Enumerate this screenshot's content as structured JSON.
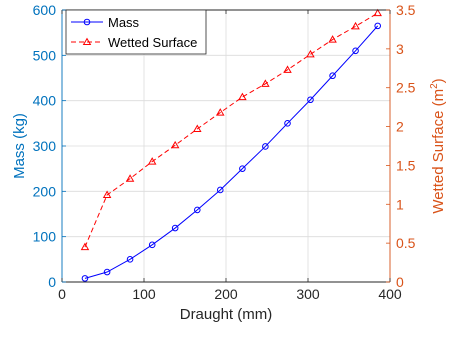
{
  "chart_data": {
    "type": "line",
    "xlabel": "Draught (mm)",
    "xlim": [
      0,
      400
    ],
    "x_ticks": [
      0,
      100,
      200,
      300,
      400
    ],
    "grid": true,
    "legend_position": "top-left",
    "y_left": {
      "label": "Mass (kg)",
      "lim": [
        0,
        600
      ],
      "ticks": [
        0,
        100,
        200,
        300,
        400,
        500,
        600
      ],
      "color": "#0072BD"
    },
    "y_right": {
      "label": "Wetted Surface (m",
      "label_sup": "2",
      "label_end": ")",
      "lim": [
        0,
        3.5
      ],
      "ticks": [
        0,
        0.5,
        1,
        1.5,
        2,
        2.5,
        3,
        3.5
      ],
      "tick_labels": [
        "0",
        "0.5",
        "1",
        "1.5",
        "2",
        "2.5",
        "3",
        "3.5"
      ],
      "color": "#D95319"
    },
    "series": [
      {
        "name": "Mass",
        "axis": "left",
        "color": "#0000FF",
        "marker": "circle",
        "line": "solid",
        "x": [
          28,
          55,
          83,
          110,
          138,
          165,
          193,
          220,
          248,
          275,
          303,
          330,
          358,
          385
        ],
        "y": [
          8,
          22,
          50,
          82,
          119,
          159,
          203,
          250,
          299,
          350,
          402,
          455,
          510,
          565
        ]
      },
      {
        "name": "Wetted Surface",
        "axis": "right",
        "color": "#FF0000",
        "marker": "triangle",
        "line": "dashed",
        "x": [
          28,
          55,
          83,
          110,
          138,
          165,
          193,
          220,
          248,
          275,
          303,
          330,
          358,
          385
        ],
        "y": [
          0.45,
          1.12,
          1.33,
          1.55,
          1.76,
          1.97,
          2.18,
          2.38,
          2.55,
          2.73,
          2.93,
          3.12,
          3.29,
          3.46
        ]
      }
    ]
  }
}
